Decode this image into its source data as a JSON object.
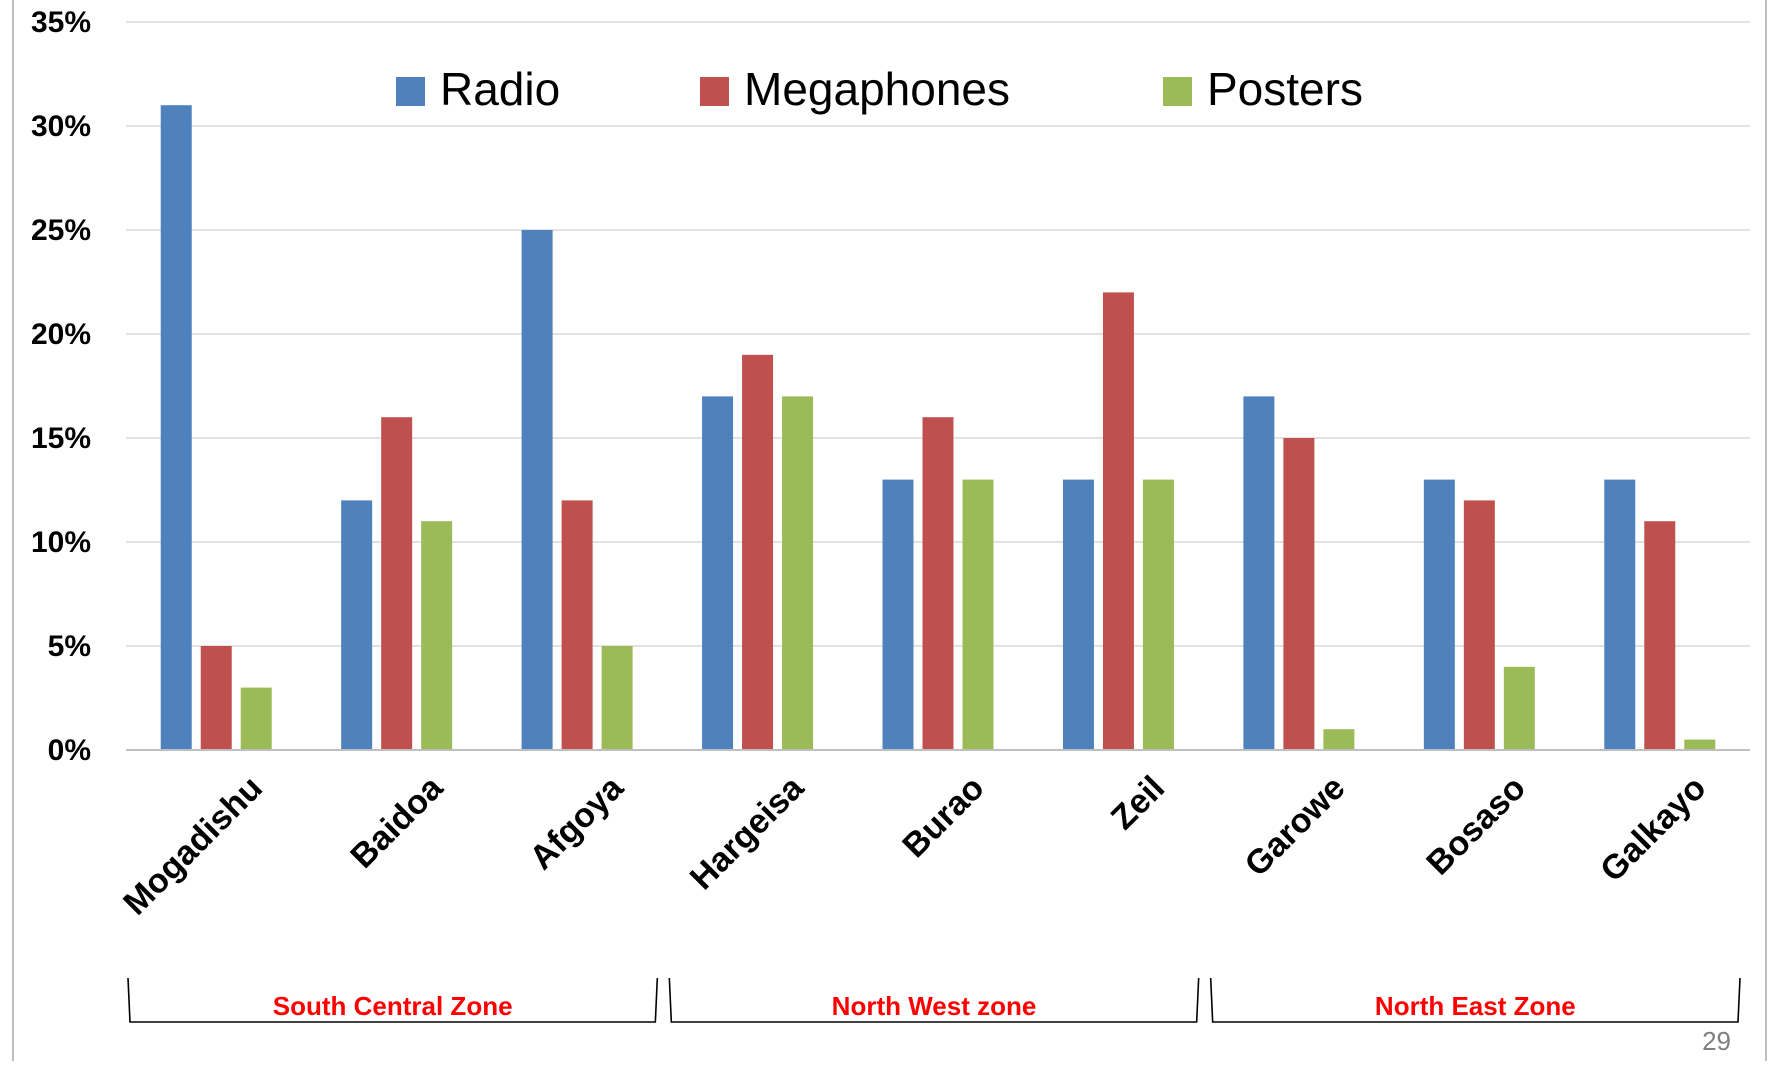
{
  "chart_data": {
    "type": "bar",
    "categories": [
      "Mogadishu",
      "Baidoa",
      "Afgoya",
      "Hargeisa",
      "Burao",
      "Zeil",
      "Garowe",
      "Bosaso",
      "Galkayo"
    ],
    "series": [
      {
        "name": "Radio",
        "color": "#4F81BD",
        "values": [
          31,
          12,
          25,
          17,
          13,
          13,
          17,
          13,
          13
        ]
      },
      {
        "name": "Megaphones",
        "color": "#C0504D",
        "values": [
          5,
          16,
          12,
          19,
          16,
          22,
          15,
          12,
          11
        ]
      },
      {
        "name": "Posters",
        "color": "#9BBB59",
        "values": [
          3,
          11,
          5,
          17,
          13,
          13,
          1,
          4,
          0.5
        ]
      }
    ],
    "y_ticks": [
      "0%",
      "5%",
      "10%",
      "15%",
      "20%",
      "25%",
      "30%",
      "35%"
    ],
    "ylim": [
      0,
      35
    ],
    "grid": true,
    "legend_position": "top",
    "groups": [
      {
        "label": "South Central Zone",
        "start": 0,
        "end": 2
      },
      {
        "label": "North West zone",
        "start": 3,
        "end": 5
      },
      {
        "label": "North East Zone",
        "start": 6,
        "end": 8
      }
    ],
    "group_label_color": "#FF0000"
  },
  "page_number": "29"
}
